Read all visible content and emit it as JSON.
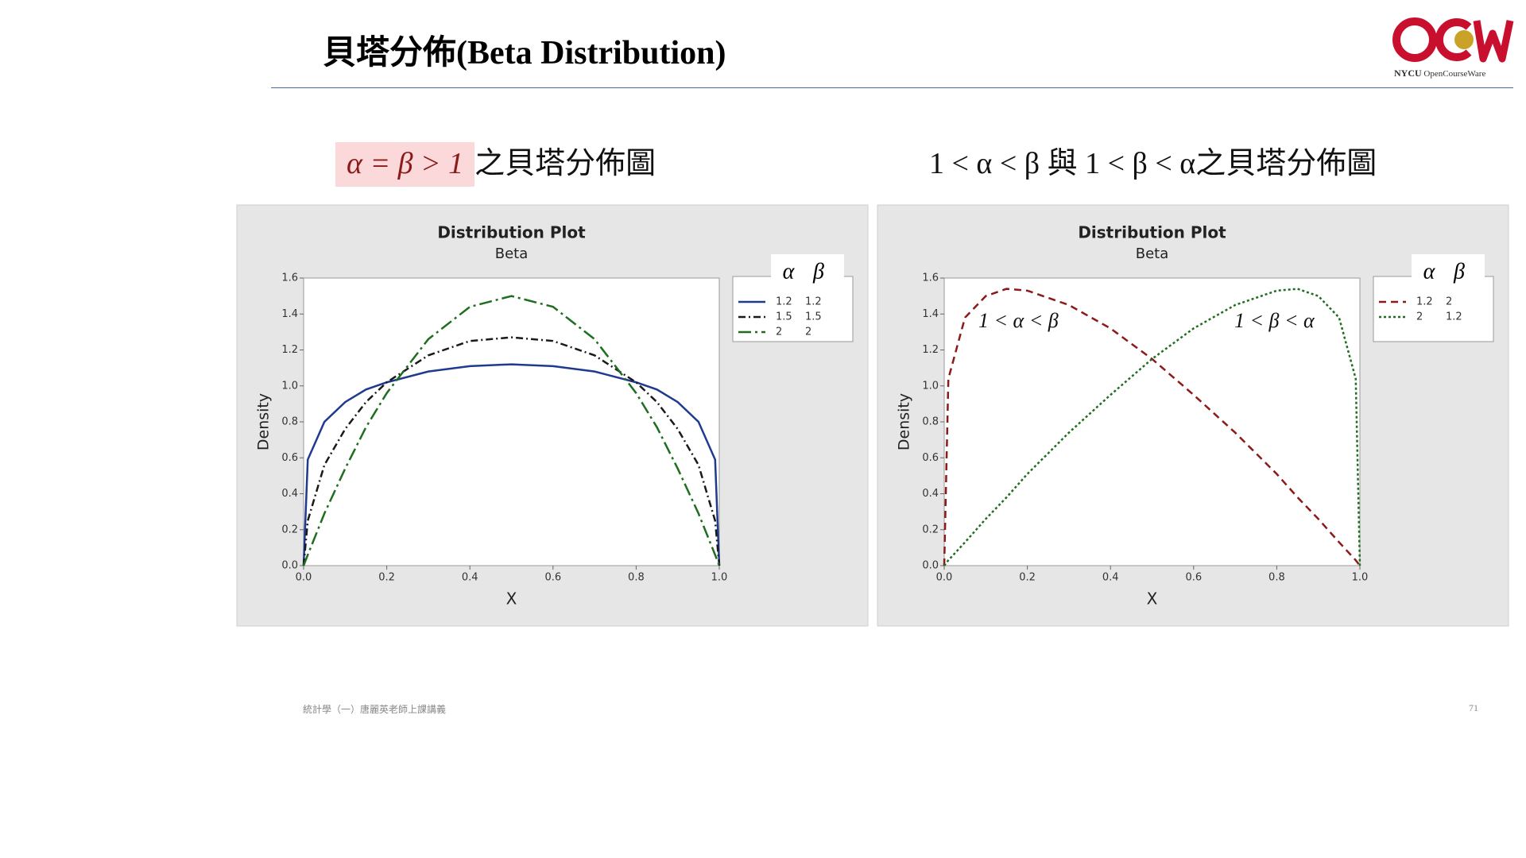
{
  "header": {
    "title": "貝塔分佈(Beta Distribution)",
    "logo_org": "NYCU",
    "logo_sub": "OpenCourseWare"
  },
  "captions": [
    {
      "highlight": "α = β > 1",
      "text": "之貝塔分佈圖"
    },
    {
      "text": "1 < α < β 與 1 < β < α之貝塔分佈圖"
    }
  ],
  "footer": "統計學（一）唐麗英老師上課講義",
  "page_number": 71,
  "chart_data": [
    {
      "type": "line",
      "title": "Distribution Plot",
      "subtitle": "Beta",
      "x_label": "X",
      "y_label": "Density",
      "legend_title": [
        "α",
        "β"
      ],
      "legend": "right",
      "x": [
        0,
        0.01,
        0.05,
        0.1,
        0.15,
        0.2,
        0.3,
        0.4,
        0.5,
        0.6,
        0.7,
        0.8,
        0.85,
        0.9,
        0.95,
        0.99,
        1
      ],
      "xlim": [
        0,
        1
      ],
      "ylim": [
        0,
        1.6
      ],
      "xticks": [
        {
          "value": 0,
          "label": "0.0"
        },
        0.2,
        0.4,
        0.6,
        0.8,
        {
          "value": 1,
          "label": "1.0"
        }
      ],
      "yticks": [
        {
          "value": 0,
          "label": "0.0"
        },
        0.2,
        0.4,
        0.6,
        0.8,
        {
          "value": 1,
          "label": "1.0"
        },
        1.2,
        1.4,
        1.6
      ],
      "series": [
        {
          "alpha": 1.2,
          "beta": 1.2,
          "color": "#1f3a8f",
          "style": "solid",
          "values": [
            0,
            0.59,
            0.8,
            0.91,
            0.98,
            1.02,
            1.08,
            1.11,
            1.12,
            1.11,
            1.08,
            1.02,
            0.98,
            0.91,
            0.8,
            0.59,
            0
          ]
        },
        {
          "alpha": 1.5,
          "beta": 1.5,
          "color": "#1a1a1a",
          "style": "dash-dot",
          "values": [
            0,
            0.25,
            0.56,
            0.76,
            0.91,
            1.02,
            1.17,
            1.25,
            1.27,
            1.25,
            1.17,
            1.02,
            0.91,
            0.76,
            0.56,
            0.25,
            0
          ]
        },
        {
          "alpha": 2,
          "beta": 2,
          "color": "#1f6e1f",
          "style": "long-dash-dot",
          "values": [
            0,
            0.06,
            0.29,
            0.54,
            0.77,
            0.96,
            1.26,
            1.44,
            1.5,
            1.44,
            1.26,
            0.96,
            0.77,
            0.54,
            0.29,
            0.06,
            0
          ]
        }
      ]
    },
    {
      "type": "line",
      "title": "Distribution Plot",
      "subtitle": "Beta",
      "x_label": "X",
      "y_label": "Density",
      "legend_title": [
        "α",
        "β"
      ],
      "legend": "right",
      "annotations": [
        "1 < α < β",
        "1 < β < α"
      ],
      "x": [
        0,
        0.01,
        0.05,
        0.1,
        0.15,
        0.2,
        0.3,
        0.4,
        0.5,
        0.6,
        0.7,
        0.8,
        0.85,
        0.9,
        0.95,
        0.99,
        1
      ],
      "xlim": [
        0,
        1
      ],
      "ylim": [
        0,
        1.6
      ],
      "xticks": [
        {
          "value": 0,
          "label": "0.0"
        },
        0.2,
        0.4,
        0.6,
        0.8,
        {
          "value": 1,
          "label": "1.0"
        }
      ],
      "yticks": [
        {
          "value": 0,
          "label": "0.0"
        },
        0.2,
        0.4,
        0.6,
        0.8,
        {
          "value": 1,
          "label": "1.0"
        },
        1.2,
        1.4,
        1.6
      ],
      "series": [
        {
          "alpha": 1.2,
          "beta": 2,
          "color": "#8b1a1a",
          "style": "dashed",
          "values": [
            0,
            1.04,
            1.38,
            1.5,
            1.54,
            1.53,
            1.45,
            1.32,
            1.15,
            0.95,
            0.74,
            0.51,
            0.38,
            0.26,
            0.13,
            0.03,
            0
          ]
        },
        {
          "alpha": 2,
          "beta": 1.2,
          "color": "#1f6e1f",
          "style": "dotted",
          "values": [
            0,
            0.03,
            0.13,
            0.26,
            0.38,
            0.51,
            0.74,
            0.95,
            1.15,
            1.32,
            1.45,
            1.53,
            1.54,
            1.5,
            1.38,
            1.04,
            0
          ]
        }
      ]
    }
  ]
}
